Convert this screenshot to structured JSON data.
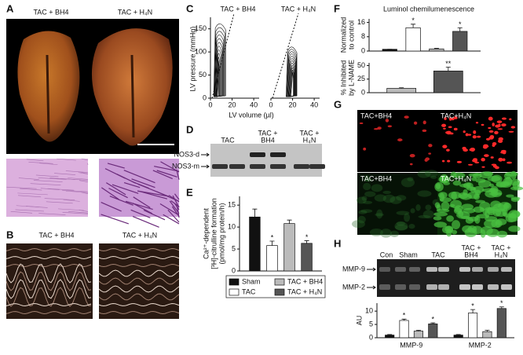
{
  "A": {
    "letter": "A",
    "labels": [
      "TAC + BH4",
      "TAC + H₄N"
    ]
  },
  "B": {
    "letter": "B",
    "labels": [
      "TAC + BH4",
      "TAC + H₄N"
    ]
  },
  "C": {
    "letter": "C",
    "labels": [
      "TAC + BH4",
      "TAC + H₄N"
    ],
    "ylabel": "LV pressure (mmHg)",
    "xlabel": "LV volume (µl)",
    "ylim": [
      0,
      175
    ],
    "yticks": [
      0,
      50,
      100,
      150
    ],
    "xlim": [
      0,
      45
    ],
    "xticks": [
      0,
      20,
      40
    ]
  },
  "D": {
    "letter": "D",
    "lanes": [
      [
        "TAC"
      ],
      [
        "TAC +",
        "BH4"
      ],
      [
        "TAC +",
        "H₄N"
      ]
    ],
    "bands": [
      "NOS3-d",
      "NOS3-m"
    ]
  },
  "E": {
    "letter": "E"
  },
  "F": {
    "letter": "F"
  },
  "G": {
    "letter": "G",
    "labels": [
      "TAC+BH4",
      "TAC+H₄N",
      "TAC+BH4",
      "TAC+H₄N"
    ]
  },
  "H": {
    "letter": "H",
    "lanes": [
      [
        "Con"
      ],
      [
        "Sham"
      ],
      [
        "TAC"
      ],
      [
        "TAC +",
        "BH4"
      ],
      [
        "TAC +",
        "H₄N"
      ]
    ],
    "bands": [
      "MMP-9",
      "MMP-2"
    ]
  },
  "chart_data": [
    {
      "type": "bar",
      "ylabel": [
        "Ca²⁺-dependent",
        "[³H]-citrulline formation",
        "(pmol/mg protein/h)"
      ],
      "ylim": [
        0,
        17
      ],
      "yticks": [
        0,
        5,
        10,
        15
      ],
      "series": [
        {
          "name": "Sham",
          "color": "#111111",
          "values": [
            12.3
          ],
          "errors": [
            1.8
          ]
        },
        {
          "name": "TAC",
          "color": "#ffffff",
          "values": [
            5.8
          ],
          "errors": [
            1.0
          ],
          "annotations": [
            "*"
          ]
        },
        {
          "name": "TAC + BH4",
          "color": "#bbbbbb",
          "values": [
            10.8
          ],
          "errors": [
            0.8
          ]
        },
        {
          "name": "TAC + H₄N",
          "color": "#555555",
          "values": [
            6.3
          ],
          "errors": [
            0.6
          ],
          "annotations": [
            "*"
          ]
        }
      ]
    },
    {
      "type": "bar",
      "title": "Luminol chemilumenescence",
      "ylabel": [
        "Normalized",
        "to control"
      ],
      "ylim": [
        0,
        18
      ],
      "yticks": [
        0,
        8,
        16
      ],
      "series": [
        {
          "color": "#111111",
          "values": [
            1
          ],
          "errors": [
            0
          ]
        },
        {
          "color": "#ffffff",
          "values": [
            13
          ],
          "errors": [
            2
          ],
          "annotations": [
            "*"
          ]
        },
        {
          "color": "#bbbbbb",
          "values": [
            1.2
          ],
          "errors": [
            0.3
          ]
        },
        {
          "color": "#555555",
          "values": [
            11
          ],
          "errors": [
            2
          ],
          "annotations": [
            "*"
          ]
        }
      ]
    },
    {
      "type": "bar",
      "ylabel": [
        "% Inhibited",
        "by L-NAME"
      ],
      "ylim": [
        0,
        55
      ],
      "yticks": [
        0,
        25,
        50
      ],
      "series": [
        {
          "color": "#bbbbbb",
          "values": [
            8
          ],
          "errors": [
            1
          ]
        },
        {
          "color": "#555555",
          "values": [
            40
          ],
          "errors": [
            7
          ],
          "annotations": [
            "**"
          ]
        }
      ]
    },
    {
      "type": "bar",
      "ylabel": [
        "AU"
      ],
      "categories": [
        "MMP-9",
        "MMP-2"
      ],
      "ylim": [
        0,
        13
      ],
      "yticks": [
        0,
        5,
        10
      ],
      "series": [
        {
          "color": "#111111",
          "values": [
            1,
            1
          ],
          "errors": [
            0.2,
            0.2
          ]
        },
        {
          "color": "#ffffff",
          "values": [
            6.5,
            9.3
          ],
          "errors": [
            0.5,
            1.3
          ],
          "annotations": [
            "*",
            "*"
          ]
        },
        {
          "color": "#bbbbbb",
          "values": [
            2.5,
            2.3
          ],
          "errors": [
            0.3,
            0.5
          ]
        },
        {
          "color": "#555555",
          "values": [
            5.2,
            11
          ],
          "errors": [
            0.4,
            0.6
          ],
          "annotations": [
            "*",
            "*"
          ]
        }
      ]
    }
  ]
}
